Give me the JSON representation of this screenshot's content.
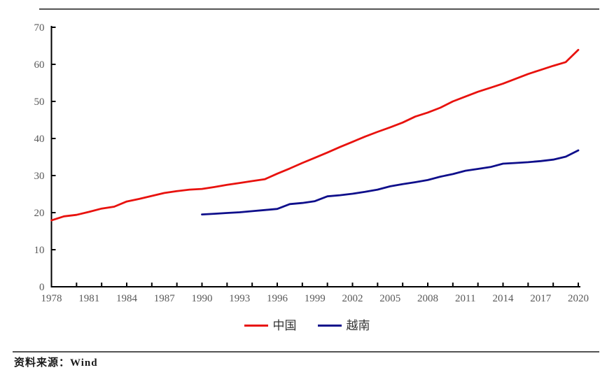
{
  "page": {
    "source_note": "资料来源：Wind"
  },
  "chart_data": {
    "type": "line",
    "title": "",
    "xlabel": "",
    "ylabel": "",
    "xlim": [
      1978,
      2020
    ],
    "ylim": [
      0,
      70
    ],
    "ytick_step": 10,
    "xtick_label_years": [
      1978,
      1981,
      1984,
      1987,
      1990,
      1993,
      1996,
      1999,
      2002,
      2005,
      2008,
      2011,
      2014,
      2017,
      2020
    ],
    "xtick_mark_start": 1980,
    "xtick_mark_step": 2,
    "grid": false,
    "legend_position": "bottom",
    "axis_color": "#000000",
    "tick_label_color": "#595959",
    "series": [
      {
        "name": "中国",
        "color": "#e8120e",
        "start_year": 1978,
        "values": [
          17.9,
          19.0,
          19.4,
          20.2,
          21.1,
          21.6,
          23.0,
          23.7,
          24.5,
          25.3,
          25.8,
          26.2,
          26.4,
          26.9,
          27.5,
          28.0,
          28.5,
          29.0,
          30.5,
          31.9,
          33.4,
          34.8,
          36.2,
          37.7,
          39.1,
          40.5,
          41.8,
          43.0,
          44.3,
          45.9,
          47.0,
          48.3,
          50.0,
          51.3,
          52.6,
          53.7,
          54.8,
          56.1,
          57.4,
          58.5,
          59.6,
          60.6,
          63.9
        ]
      },
      {
        "name": "越南",
        "color": "#0f0f8b",
        "start_year": 1990,
        "values": [
          19.5,
          19.7,
          19.9,
          20.1,
          20.4,
          20.7,
          21.0,
          22.3,
          22.6,
          23.1,
          24.4,
          24.7,
          25.1,
          25.6,
          26.2,
          27.1,
          27.7,
          28.2,
          28.8,
          29.7,
          30.4,
          31.3,
          31.8,
          32.3,
          33.2,
          33.4,
          33.6,
          33.9,
          34.3,
          35.1,
          36.8
        ]
      }
    ]
  }
}
